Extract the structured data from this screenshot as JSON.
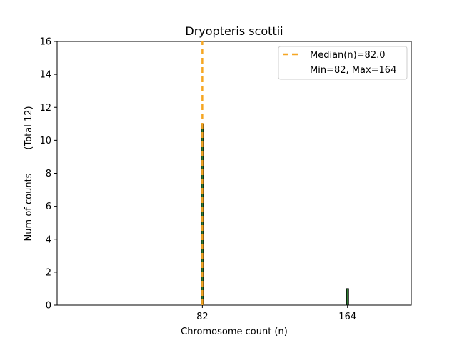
{
  "chart_data": {
    "type": "bar",
    "title": "Dryopteris scottii",
    "xlabel": "Chromosome count (n)",
    "ylabel": "Num of counts",
    "ylabel_secondary": "(Total 12)",
    "xlim": [
      0,
      200
    ],
    "ylim": [
      0,
      16
    ],
    "x_ticks": [
      82,
      164
    ],
    "y_ticks": [
      0,
      2,
      4,
      6,
      8,
      10,
      12,
      14,
      16
    ],
    "bars": [
      {
        "x": 82,
        "value": 11
      },
      {
        "x": 164,
        "value": 1
      }
    ],
    "median_line": {
      "x": 82,
      "label": "Median(n)=82.0",
      "color": "#f5a623"
    },
    "legend": {
      "position": "top-right",
      "entries": [
        "Median(n)=82.0",
        "Min=82, Max=164"
      ]
    },
    "grid": false,
    "colors": {
      "bar_fill": "#2e7d32",
      "bar_edge": "#000000",
      "median": "#f5a623"
    }
  }
}
